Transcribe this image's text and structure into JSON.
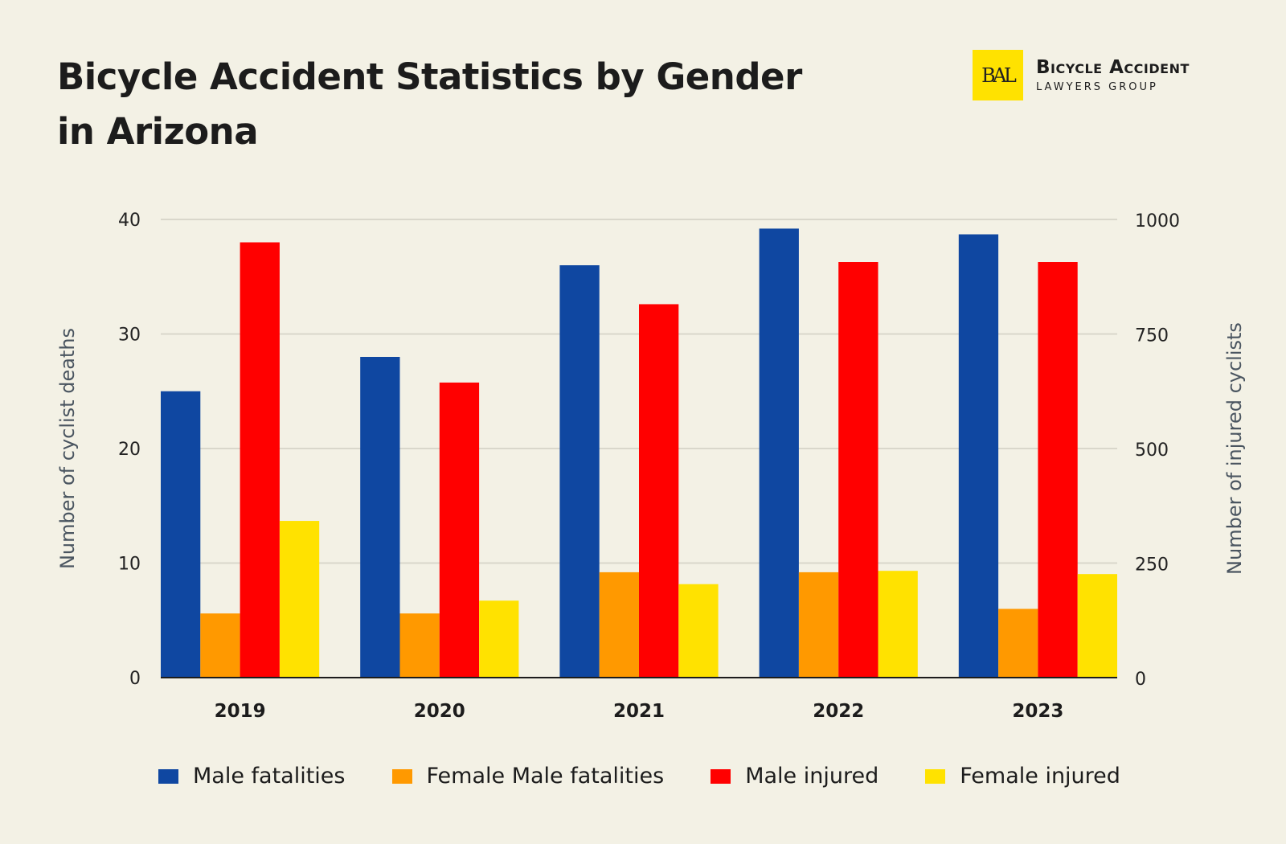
{
  "title": "Bicycle Accident Statistics by Gender in Arizona",
  "logo": {
    "monogram": "BAL",
    "name": "Bicycle Accident",
    "sub": "LAWYERS GROUP",
    "color": "#ffe200"
  },
  "chart_data": {
    "type": "bar",
    "title": "Bicycle Accident Statistics by Gender in Arizona",
    "categories": [
      "2019",
      "2020",
      "2021",
      "2022",
      "2023"
    ],
    "ylabel": "Number of cyclist deaths",
    "ylabel_right": "Number of injured cyclists",
    "ylim": [
      0,
      40
    ],
    "ylim_right": [
      0,
      1000
    ],
    "yticks": [
      "0",
      "10",
      "20",
      "30",
      "40"
    ],
    "yticks_right": [
      "0",
      "250",
      "500",
      "750",
      "1000"
    ],
    "grid": true,
    "legend": "bottom",
    "series": [
      {
        "name": "Male fatalities",
        "axis": "left",
        "color": "#0f47a1",
        "values": [
          25,
          28,
          36,
          39.2,
          38.7
        ]
      },
      {
        "name": "Female Male fatalities",
        "axis": "left",
        "color": "#ff9900",
        "values": [
          5.6,
          5.6,
          9.2,
          9.2,
          6
        ]
      },
      {
        "name": "Male injured",
        "axis": "right",
        "color": "#ff0000",
        "values": [
          950,
          644,
          815,
          907,
          907
        ]
      },
      {
        "name": "Female injured",
        "axis": "right",
        "color": "#ffe200",
        "values": [
          342,
          168,
          204,
          233,
          226
        ]
      }
    ]
  }
}
